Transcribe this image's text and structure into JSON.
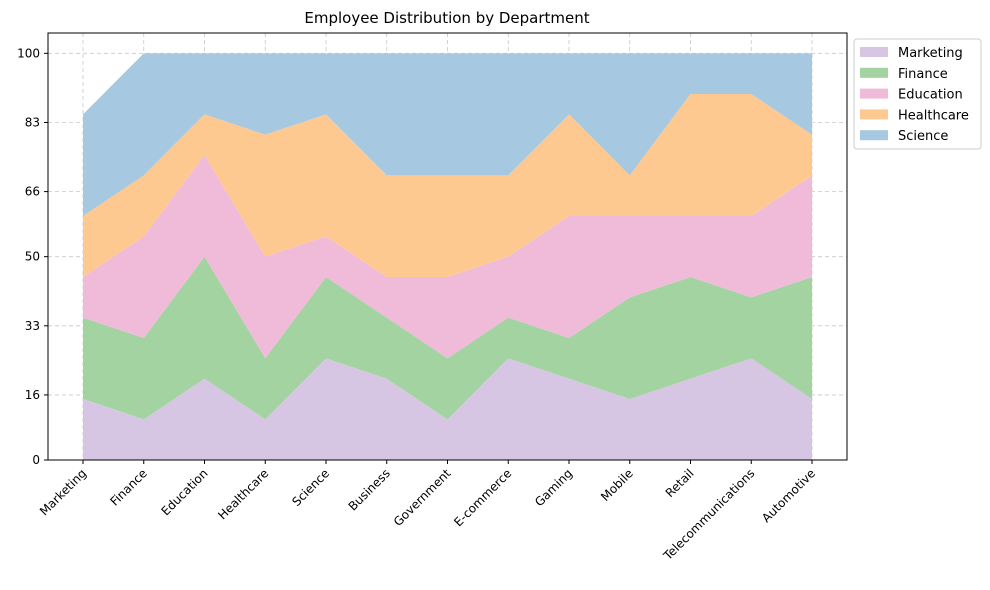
{
  "chart_data": {
    "type": "area",
    "stacked": true,
    "title": "Employee Distribution by Department",
    "xlabel": "",
    "ylabel": "",
    "categories": [
      "Marketing",
      "Finance",
      "Education",
      "Healthcare",
      "Science",
      "Business",
      "Government",
      "E-commerce",
      "Gaming",
      "Mobile",
      "Retail",
      "Telecommunications",
      "Automotive"
    ],
    "ylim": [
      0,
      105
    ],
    "yticks": [
      0,
      16,
      33,
      50,
      66,
      83,
      100
    ],
    "grid": true,
    "legend_position": "upper right, outside plot",
    "series": [
      {
        "name": "Marketing",
        "color": "#d6c6e3",
        "values": [
          15,
          10,
          20,
          10,
          25,
          20,
          10,
          25,
          20,
          15,
          20,
          25,
          15
        ]
      },
      {
        "name": "Finance",
        "color": "#a4d3a2",
        "values": [
          20,
          20,
          30,
          15,
          20,
          15,
          15,
          10,
          10,
          25,
          25,
          15,
          30
        ]
      },
      {
        "name": "Education",
        "color": "#efbbd8",
        "values": [
          10,
          25,
          25,
          25,
          10,
          10,
          20,
          15,
          30,
          20,
          15,
          20,
          25
        ]
      },
      {
        "name": "Healthcare",
        "color": "#fec990",
        "values": [
          15,
          15,
          10,
          30,
          30,
          25,
          25,
          20,
          25,
          10,
          30,
          30,
          10
        ]
      },
      {
        "name": "Science",
        "color": "#a6c8e0",
        "values": [
          25,
          30,
          15,
          20,
          15,
          30,
          30,
          30,
          15,
          30,
          10,
          10,
          20
        ]
      }
    ]
  }
}
